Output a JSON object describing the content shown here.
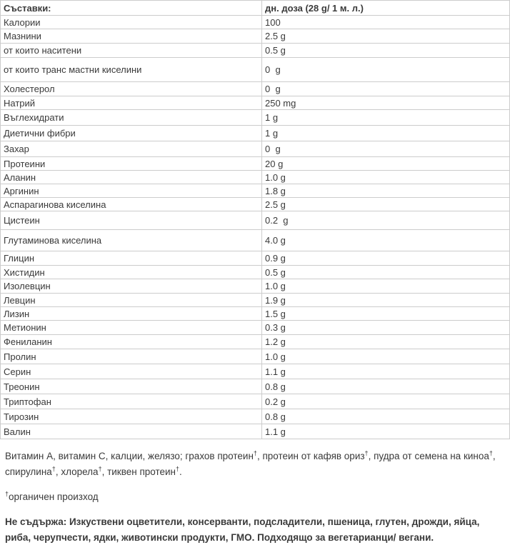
{
  "table": {
    "header": {
      "label": "Съставки:",
      "value": "дн. доза (28 g/ 1 м. л.)"
    },
    "rows": [
      {
        "label": "Калории",
        "value": "100"
      },
      {
        "label": "Мазнини",
        "value": "2.5 g"
      },
      {
        "label": "от които наситени",
        "value": "0.5 g"
      },
      {
        "label": "от които транс мастни киселини",
        "value": "0  g"
      },
      {
        "label": "Холестерол",
        "value": "0  g"
      },
      {
        "label": "Натрий",
        "value": "250 mg"
      },
      {
        "label": "Въглехидрати",
        "value": "1 g"
      },
      {
        "label": "Диетични фибри",
        "value": "1 g"
      },
      {
        "label": "Захар",
        "value": "0  g"
      },
      {
        "label": "Протеини",
        "value": "20 g"
      },
      {
        "label": "Аланин",
        "value": "1.0 g"
      },
      {
        "label": "Аргинин",
        "value": "1.8 g"
      },
      {
        "label": "Аспарагинова киселина",
        "value": "2.5 g"
      },
      {
        "label": "Цистеин",
        "value": "0.2  g"
      },
      {
        "label": "Глутаминова киселина",
        "value": "4.0 g"
      },
      {
        "label": "Глицин",
        "value": "0.9 g"
      },
      {
        "label": "Хистидин",
        "value": "0.5 g"
      },
      {
        "label": "Изолевцин",
        "value": "1.0 g"
      },
      {
        "label": "Левцин",
        "value": "1.9 g"
      },
      {
        "label": "Лизин",
        "value": "1.5 g"
      },
      {
        "label": "Метионин",
        "value": "0.3 g"
      },
      {
        "label": "Фениланин",
        "value": "1.2 g"
      },
      {
        "label": "Пролин",
        "value": "1.0 g"
      },
      {
        "label": "Серин",
        "value": "1.1 g"
      },
      {
        "label": "Треонин",
        "value": "0.8 g"
      },
      {
        "label": "Триптофан",
        "value": "0.2 g"
      },
      {
        "label": "Тирозин",
        "value": "0.8 g"
      },
      {
        "label": "Валин",
        "value": "1.1 g"
      }
    ]
  },
  "notes": {
    "ingredients": "Витамин А, витамин С, калции, желязо; грахов протеин†, протеин от кафяв ориз†, пудра от семена на киноа†, спирулина†, хлорела†, тиквен протеин†.",
    "footnote": "†органичен произход",
    "disclaimer": "Не съдържа: Изкуствени оцветители, консерванти, подсладители, пшеница, глутен, дрожди, яйца, риба, черупчести, ядки, животински продукти, ГМО. Подходящо за вегетарианци/ вегани."
  },
  "colors": {
    "text": "#3a3a3a",
    "border": "#cccccc",
    "background": "#ffffff"
  }
}
